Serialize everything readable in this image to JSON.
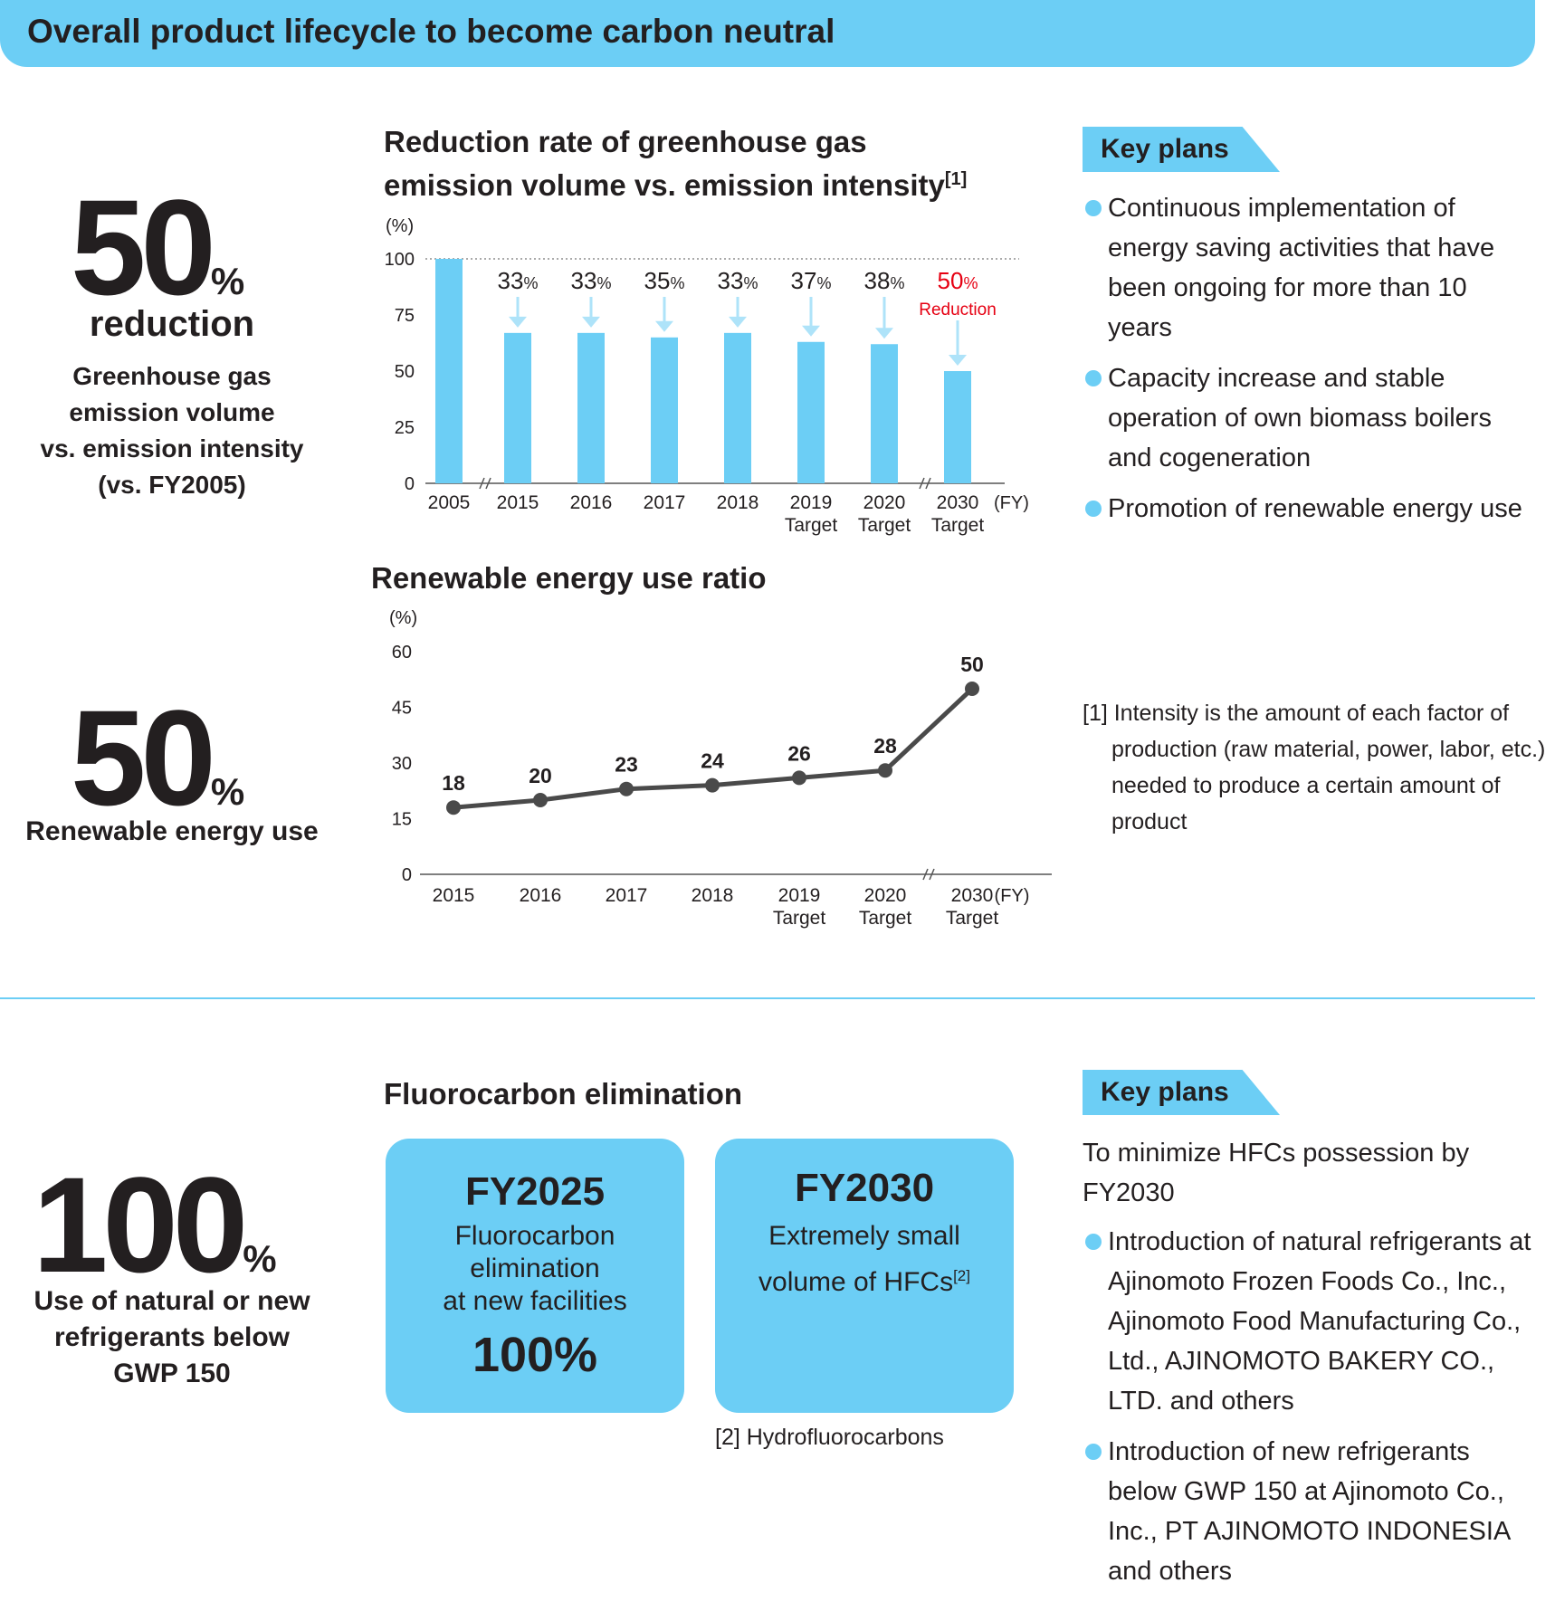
{
  "header": {
    "title": "Overall product lifecycle to become carbon neutral"
  },
  "metric1": {
    "value": "50",
    "unit": "%",
    "label": "reduction",
    "desc": [
      "Greenhouse gas",
      "emission volume",
      "vs. emission intensity",
      "(vs. FY2005)"
    ]
  },
  "metric2": {
    "value": "50",
    "unit": "%",
    "label": "Renewable energy use"
  },
  "metric3": {
    "value": "100",
    "unit": "%",
    "label": [
      "Use of natural or new",
      "refrigerants below",
      "GWP 150"
    ]
  },
  "key_plans_1": {
    "tag": "Key plans",
    "items": [
      "Continuous implementation of energy saving activities that have been ongoing for more than 10 years",
      "Capacity increase and stable operation of own biomass boilers and cogeneration",
      "Promotion of renewable energy use"
    ]
  },
  "footnote1": "[1] Intensity is the amount of each factor of production (raw material, power, labor, etc.) needed to produce a certain amount of product",
  "fluoro": {
    "title": "Fluorocarbon elimination",
    "card1": {
      "year": "FY2025",
      "lines": [
        "Fluorocarbon",
        "elimination",
        "at new facilities"
      ],
      "value": "100%"
    },
    "card2": {
      "year": "FY2030",
      "line1": "Extremely small",
      "line2": "volume of HFCs",
      "sup": "[2]"
    },
    "footnote": "[2] Hydrofluorocarbons"
  },
  "key_plans_2": {
    "tag": "Key plans",
    "intro": "To minimize HFCs possession by FY2030",
    "items": [
      "Introduction of natural refrigerants at Ajinomoto Frozen Foods Co., Inc., Ajinomoto Food Manufacturing Co., Ltd., AJINOMOTO BAKERY CO., LTD. and others",
      "Introduction of new refrigerants below GWP 150 at Ajinomoto Co., Inc., PT AJINOMOTO INDONESIA and others"
    ]
  },
  "chart_data": [
    {
      "type": "bar",
      "title": "Reduction rate of greenhouse gas emission volume vs. emission intensity",
      "title_line1": "Reduction rate of greenhouse gas",
      "title_line2": "emission volume vs. emission intensity",
      "title_sup": "[1]",
      "ylabel": "(%)",
      "xlabel": "(FY)",
      "ylim": [
        0,
        100
      ],
      "yticks": [
        0,
        25,
        50,
        75,
        100
      ],
      "categories": [
        "2005",
        "2015",
        "2016",
        "2017",
        "2018",
        "2019",
        "2020",
        "2030"
      ],
      "sublabels": [
        "",
        "",
        "",
        "",
        "",
        "Target",
        "Target",
        "Target"
      ],
      "values": [
        100,
        67,
        67,
        65,
        67,
        63,
        62,
        50
      ],
      "reductions": [
        "",
        "33",
        "33",
        "35",
        "33",
        "37",
        "38",
        "50"
      ],
      "reduction_unit": "%",
      "highlight_label": "Reduction",
      "colors": {
        "bar": "#6ccef5",
        "arrow": "#aee3f9",
        "highlight": "#e60012"
      }
    },
    {
      "type": "line",
      "title": "Renewable energy use ratio",
      "ylabel": "(%)",
      "xlabel": "(FY)",
      "ylim": [
        0,
        60
      ],
      "yticks": [
        0,
        15,
        30,
        45,
        60
      ],
      "x": [
        "2015",
        "2016",
        "2017",
        "2018",
        "2019",
        "2020",
        "2030"
      ],
      "sublabels": [
        "",
        "",
        "",
        "",
        "Target",
        "Target",
        "Target"
      ],
      "values": [
        18,
        20,
        23,
        24,
        26,
        28,
        50
      ],
      "colors": {
        "line": "#4a4a4a"
      }
    }
  ]
}
